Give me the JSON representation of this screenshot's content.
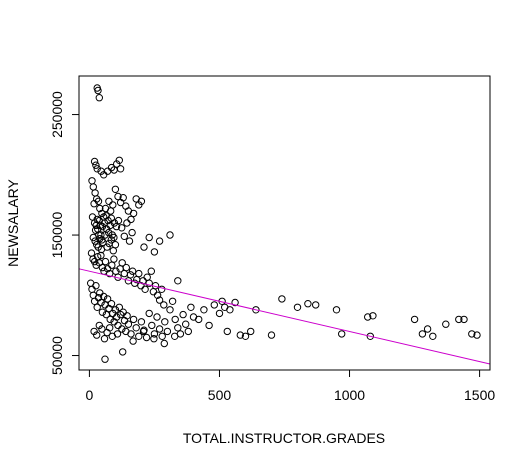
{
  "chart_data": {
    "type": "scatter",
    "title": "",
    "xlabel": "TOTAL.INSTRUCTOR.GRADES",
    "ylabel": "NEWSALARY",
    "xlim": [
      -40,
      1540
    ],
    "ylim": [
      38000,
      282000
    ],
    "x_ticks": [
      0,
      500,
      1000,
      1500
    ],
    "x_tick_labels": [
      "0",
      "500",
      "1000",
      "1500"
    ],
    "y_ticks": [
      50000,
      150000,
      250000
    ],
    "y_tick_labels": [
      "50000",
      "150000",
      "250000"
    ],
    "grid": false,
    "legend": "none",
    "point_color": "#000000",
    "line_color": "#cc00cc",
    "regression_line": {
      "intercept": 120000,
      "slope": -50,
      "x_range": [
        -40,
        1540
      ]
    },
    "points": [
      [
        30,
        272000
      ],
      [
        33,
        270000
      ],
      [
        38,
        264000
      ],
      [
        60,
        47000
      ],
      [
        20,
        211000
      ],
      [
        25,
        208000
      ],
      [
        30,
        205000
      ],
      [
        45,
        203000
      ],
      [
        55,
        200000
      ],
      [
        70,
        203000
      ],
      [
        85,
        206000
      ],
      [
        95,
        204000
      ],
      [
        105,
        209000
      ],
      [
        115,
        212000
      ],
      [
        120,
        205000
      ],
      [
        10,
        195000
      ],
      [
        15,
        190000
      ],
      [
        22,
        185000
      ],
      [
        28,
        180000
      ],
      [
        35,
        178000
      ],
      [
        18,
        176000
      ],
      [
        40,
        172000
      ],
      [
        48,
        168000
      ],
      [
        55,
        165000
      ],
      [
        62,
        172000
      ],
      [
        75,
        178000
      ],
      [
        82,
        170000
      ],
      [
        90,
        175000
      ],
      [
        100,
        188000
      ],
      [
        110,
        182000
      ],
      [
        120,
        177000
      ],
      [
        130,
        181000
      ],
      [
        140,
        174000
      ],
      [
        150,
        170000
      ],
      [
        160,
        163000
      ],
      [
        170,
        168000
      ],
      [
        180,
        180000
      ],
      [
        190,
        175000
      ],
      [
        200,
        178000
      ],
      [
        12,
        165000
      ],
      [
        20,
        160000
      ],
      [
        26,
        158000
      ],
      [
        32,
        155000
      ],
      [
        38,
        162000
      ],
      [
        44,
        150000
      ],
      [
        50,
        157000
      ],
      [
        58,
        160000
      ],
      [
        66,
        155000
      ],
      [
        72,
        162000
      ],
      [
        80,
        158000
      ],
      [
        88,
        150000
      ],
      [
        96,
        160000
      ],
      [
        104,
        157000
      ],
      [
        112,
        162000
      ],
      [
        15,
        148000
      ],
      [
        22,
        145000
      ],
      [
        28,
        142000
      ],
      [
        34,
        140000
      ],
      [
        40,
        147000
      ],
      [
        46,
        138000
      ],
      [
        52,
        144000
      ],
      [
        60,
        150000
      ],
      [
        68,
        140000
      ],
      [
        76,
        143000
      ],
      [
        84,
        146000
      ],
      [
        92,
        137000
      ],
      [
        100,
        142000
      ],
      [
        8,
        135000
      ],
      [
        14,
        130000
      ],
      [
        20,
        128000
      ],
      [
        26,
        125000
      ],
      [
        32,
        132000
      ],
      [
        38,
        127000
      ],
      [
        44,
        133000
      ],
      [
        50,
        123000
      ],
      [
        56,
        120000
      ],
      [
        62,
        128000
      ],
      [
        70,
        122000
      ],
      [
        78,
        118000
      ],
      [
        86,
        125000
      ],
      [
        94,
        130000
      ],
      [
        102,
        120000
      ],
      [
        110,
        115000
      ],
      [
        118,
        122000
      ],
      [
        126,
        127000
      ],
      [
        134,
        118000
      ],
      [
        142,
        123000
      ],
      [
        150,
        112000
      ],
      [
        158,
        117000
      ],
      [
        166,
        120000
      ],
      [
        174,
        110000
      ],
      [
        182,
        113000
      ],
      [
        190,
        118000
      ],
      [
        198,
        108000
      ],
      [
        206,
        112000
      ],
      [
        214,
        105000
      ],
      [
        222,
        115000
      ],
      [
        230,
        110000
      ],
      [
        238,
        120000
      ],
      [
        246,
        103000
      ],
      [
        254,
        108000
      ],
      [
        262,
        100000
      ],
      [
        270,
        96000
      ],
      [
        278,
        105000
      ],
      [
        286,
        92000
      ],
      [
        5,
        110000
      ],
      [
        10,
        105000
      ],
      [
        15,
        100000
      ],
      [
        20,
        95000
      ],
      [
        25,
        108000
      ],
      [
        30,
        90000
      ],
      [
        35,
        98000
      ],
      [
        40,
        102000
      ],
      [
        45,
        94000
      ],
      [
        50,
        86000
      ],
      [
        55,
        99000
      ],
      [
        60,
        92000
      ],
      [
        65,
        84000
      ],
      [
        70,
        97000
      ],
      [
        75,
        89000
      ],
      [
        80,
        80000
      ],
      [
        85,
        93000
      ],
      [
        90,
        85000
      ],
      [
        95,
        78000
      ],
      [
        100,
        88000
      ],
      [
        105,
        82000
      ],
      [
        110,
        75000
      ],
      [
        115,
        90000
      ],
      [
        120,
        84000
      ],
      [
        125,
        72000
      ],
      [
        130,
        86000
      ],
      [
        135,
        79000
      ],
      [
        140,
        70000
      ],
      [
        145,
        83000
      ],
      [
        150,
        76000
      ],
      [
        160,
        68000
      ],
      [
        170,
        80000
      ],
      [
        180,
        73000
      ],
      [
        190,
        66000
      ],
      [
        200,
        78000
      ],
      [
        210,
        71000
      ],
      [
        220,
        65000
      ],
      [
        230,
        85000
      ],
      [
        240,
        75000
      ],
      [
        250,
        68000
      ],
      [
        260,
        82000
      ],
      [
        270,
        72000
      ],
      [
        280,
        66000
      ],
      [
        290,
        78000
      ],
      [
        300,
        70000
      ],
      [
        310,
        88000
      ],
      [
        320,
        95000
      ],
      [
        330,
        80000
      ],
      [
        340,
        73000
      ],
      [
        350,
        68000
      ],
      [
        360,
        84000
      ],
      [
        370,
        76000
      ],
      [
        380,
        70000
      ],
      [
        390,
        90000
      ],
      [
        400,
        82000
      ],
      [
        18,
        70000
      ],
      [
        28,
        67000
      ],
      [
        38,
        75000
      ],
      [
        48,
        72000
      ],
      [
        58,
        64000
      ],
      [
        68,
        69000
      ],
      [
        78,
        73000
      ],
      [
        88,
        66000
      ],
      [
        108,
        68000
      ],
      [
        128,
        53000
      ],
      [
        168,
        62000
      ],
      [
        208,
        70000
      ],
      [
        248,
        64000
      ],
      [
        288,
        60000
      ],
      [
        328,
        66000
      ],
      [
        420,
        80000
      ],
      [
        440,
        88000
      ],
      [
        460,
        75000
      ],
      [
        480,
        92000
      ],
      [
        500,
        85000
      ],
      [
        510,
        95000
      ],
      [
        520,
        90000
      ],
      [
        530,
        70000
      ],
      [
        540,
        88000
      ],
      [
        560,
        94000
      ],
      [
        580,
        67000
      ],
      [
        600,
        66000
      ],
      [
        620,
        70000
      ],
      [
        640,
        88000
      ],
      [
        700,
        67000
      ],
      [
        740,
        97000
      ],
      [
        800,
        90000
      ],
      [
        840,
        93000
      ],
      [
        870,
        92000
      ],
      [
        950,
        88000
      ],
      [
        970,
        68000
      ],
      [
        1070,
        82000
      ],
      [
        1090,
        83000
      ],
      [
        1080,
        66000
      ],
      [
        1250,
        80000
      ],
      [
        1280,
        68000
      ],
      [
        1300,
        72000
      ],
      [
        1320,
        66000
      ],
      [
        1370,
        76000
      ],
      [
        1420,
        80000
      ],
      [
        1440,
        80000
      ],
      [
        1470,
        68000
      ],
      [
        1490,
        67000
      ],
      [
        24,
        154000
      ],
      [
        30,
        163000
      ],
      [
        36,
        150000
      ],
      [
        42,
        158000
      ],
      [
        48,
        146000
      ],
      [
        64,
        166000
      ],
      [
        74,
        152000
      ],
      [
        84,
        164000
      ],
      [
        94,
        148000
      ],
      [
        124,
        156000
      ],
      [
        134,
        149000
      ],
      [
        144,
        160000
      ],
      [
        154,
        145000
      ],
      [
        164,
        152000
      ],
      [
        210,
        140000
      ],
      [
        230,
        148000
      ],
      [
        250,
        136000
      ],
      [
        270,
        145000
      ],
      [
        310,
        150000
      ],
      [
        340,
        112000
      ]
    ]
  }
}
